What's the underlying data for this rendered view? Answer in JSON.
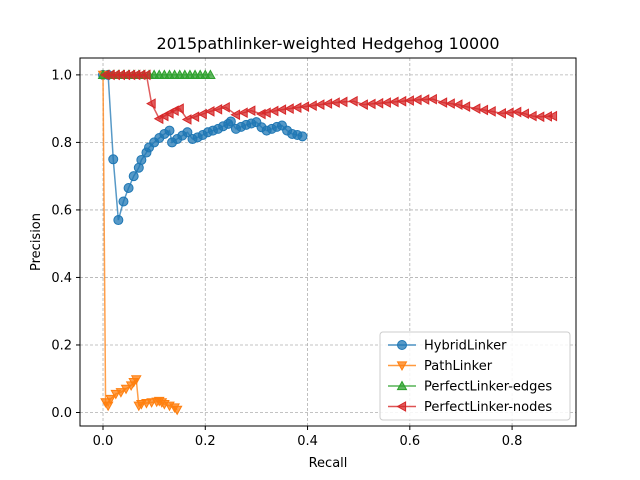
{
  "chart_data": {
    "type": "line",
    "title": "2015pathlinker-weighted Hedgehog 10000",
    "xlabel": "Recall",
    "ylabel": "Precision",
    "xlim": [
      -0.045,
      0.925
    ],
    "ylim": [
      -0.04,
      1.05
    ],
    "xticks": [
      0.0,
      0.2,
      0.4,
      0.6,
      0.8
    ],
    "xtick_labels": [
      "0.0",
      "0.2",
      "0.4",
      "0.6",
      "0.8"
    ],
    "yticks": [
      0.0,
      0.2,
      0.4,
      0.6,
      0.8,
      1.0
    ],
    "ytick_labels": [
      "0.0",
      "0.2",
      "0.4",
      "0.6",
      "0.8",
      "1.0"
    ],
    "grid": true,
    "legend_position": "bottom-right",
    "series": [
      {
        "name": "HybridLinker",
        "color": "#1f77b4",
        "marker": "circle",
        "points": [
          [
            0.0,
            1.0
          ],
          [
            0.01,
            1.0
          ],
          [
            0.02,
            0.75
          ],
          [
            0.03,
            0.57
          ],
          [
            0.04,
            0.625
          ],
          [
            0.05,
            0.665
          ],
          [
            0.06,
            0.7
          ],
          [
            0.07,
            0.725
          ],
          [
            0.075,
            0.748
          ],
          [
            0.085,
            0.77
          ],
          [
            0.09,
            0.785
          ],
          [
            0.1,
            0.8
          ],
          [
            0.11,
            0.813
          ],
          [
            0.12,
            0.825
          ],
          [
            0.13,
            0.835
          ],
          [
            0.135,
            0.8
          ],
          [
            0.145,
            0.81
          ],
          [
            0.155,
            0.82
          ],
          [
            0.165,
            0.83
          ],
          [
            0.175,
            0.81
          ],
          [
            0.185,
            0.815
          ],
          [
            0.195,
            0.822
          ],
          [
            0.205,
            0.83
          ],
          [
            0.215,
            0.835
          ],
          [
            0.225,
            0.84
          ],
          [
            0.235,
            0.848
          ],
          [
            0.245,
            0.855
          ],
          [
            0.25,
            0.862
          ],
          [
            0.26,
            0.84
          ],
          [
            0.27,
            0.846
          ],
          [
            0.28,
            0.852
          ],
          [
            0.29,
            0.856
          ],
          [
            0.3,
            0.86
          ],
          [
            0.31,
            0.845
          ],
          [
            0.32,
            0.835
          ],
          [
            0.33,
            0.84
          ],
          [
            0.34,
            0.846
          ],
          [
            0.35,
            0.85
          ],
          [
            0.36,
            0.835
          ],
          [
            0.37,
            0.825
          ],
          [
            0.38,
            0.822
          ],
          [
            0.39,
            0.818
          ]
        ]
      },
      {
        "name": "PathLinker",
        "color": "#ff7f0e",
        "marker": "triangle-down",
        "points": [
          [
            0.0,
            1.0
          ],
          [
            0.005,
            0.03
          ],
          [
            0.01,
            0.02
          ],
          [
            0.015,
            0.04
          ],
          [
            0.025,
            0.055
          ],
          [
            0.035,
            0.06
          ],
          [
            0.045,
            0.07
          ],
          [
            0.055,
            0.08
          ],
          [
            0.06,
            0.09
          ],
          [
            0.065,
            0.098
          ],
          [
            0.07,
            0.02
          ],
          [
            0.075,
            0.025
          ],
          [
            0.085,
            0.028
          ],
          [
            0.095,
            0.03
          ],
          [
            0.105,
            0.032
          ],
          [
            0.11,
            0.034
          ],
          [
            0.115,
            0.03
          ],
          [
            0.12,
            0.025
          ],
          [
            0.13,
            0.02
          ],
          [
            0.14,
            0.015
          ],
          [
            0.145,
            0.008
          ]
        ]
      },
      {
        "name": "PerfectLinker-edges",
        "color": "#2ca02c",
        "marker": "triangle-up",
        "points": [
          [
            0.0,
            1.0
          ],
          [
            0.01,
            1.0
          ],
          [
            0.02,
            1.0
          ],
          [
            0.03,
            1.0
          ],
          [
            0.04,
            1.0
          ],
          [
            0.05,
            1.0
          ],
          [
            0.06,
            1.0
          ],
          [
            0.07,
            1.0
          ],
          [
            0.08,
            1.0
          ],
          [
            0.09,
            1.0
          ],
          [
            0.1,
            1.0
          ],
          [
            0.11,
            1.0
          ],
          [
            0.12,
            1.0
          ],
          [
            0.13,
            1.0
          ],
          [
            0.14,
            1.0
          ],
          [
            0.15,
            1.0
          ],
          [
            0.16,
            1.0
          ],
          [
            0.17,
            1.0
          ],
          [
            0.18,
            1.0
          ],
          [
            0.19,
            1.0
          ],
          [
            0.2,
            1.0
          ],
          [
            0.21,
            1.0
          ]
        ]
      },
      {
        "name": "PerfectLinker-nodes",
        "color": "#d62728",
        "marker": "triangle-left",
        "points": [
          [
            0.005,
            1.0
          ],
          [
            0.015,
            1.0
          ],
          [
            0.025,
            1.0
          ],
          [
            0.035,
            1.0
          ],
          [
            0.045,
            1.0
          ],
          [
            0.055,
            1.0
          ],
          [
            0.065,
            1.0
          ],
          [
            0.075,
            1.0
          ],
          [
            0.085,
            1.0
          ],
          [
            0.095,
            0.915
          ],
          [
            0.11,
            0.87
          ],
          [
            0.12,
            0.878
          ],
          [
            0.13,
            0.886
          ],
          [
            0.14,
            0.894
          ],
          [
            0.15,
            0.9
          ],
          [
            0.165,
            0.868
          ],
          [
            0.18,
            0.876
          ],
          [
            0.195,
            0.884
          ],
          [
            0.21,
            0.892
          ],
          [
            0.225,
            0.898
          ],
          [
            0.24,
            0.904
          ],
          [
            0.26,
            0.882
          ],
          [
            0.275,
            0.888
          ],
          [
            0.29,
            0.894
          ],
          [
            0.31,
            0.884
          ],
          [
            0.32,
            0.888
          ],
          [
            0.335,
            0.893
          ],
          [
            0.35,
            0.897
          ],
          [
            0.365,
            0.9
          ],
          [
            0.38,
            0.903
          ],
          [
            0.395,
            0.906
          ],
          [
            0.41,
            0.909
          ],
          [
            0.425,
            0.912
          ],
          [
            0.44,
            0.915
          ],
          [
            0.455,
            0.918
          ],
          [
            0.47,
            0.92
          ],
          [
            0.49,
            0.922
          ],
          [
            0.51,
            0.912
          ],
          [
            0.525,
            0.914
          ],
          [
            0.54,
            0.916
          ],
          [
            0.555,
            0.918
          ],
          [
            0.57,
            0.92
          ],
          [
            0.585,
            0.922
          ],
          [
            0.6,
            0.924
          ],
          [
            0.615,
            0.926
          ],
          [
            0.63,
            0.927
          ],
          [
            0.645,
            0.928
          ],
          [
            0.665,
            0.918
          ],
          [
            0.68,
            0.915
          ],
          [
            0.695,
            0.912
          ],
          [
            0.71,
            0.906
          ],
          [
            0.73,
            0.9
          ],
          [
            0.745,
            0.896
          ],
          [
            0.76,
            0.892
          ],
          [
            0.78,
            0.886
          ],
          [
            0.795,
            0.888
          ],
          [
            0.81,
            0.89
          ],
          [
            0.825,
            0.885
          ],
          [
            0.84,
            0.878
          ],
          [
            0.855,
            0.876
          ],
          [
            0.87,
            0.877
          ],
          [
            0.88,
            0.878
          ]
        ]
      }
    ]
  }
}
